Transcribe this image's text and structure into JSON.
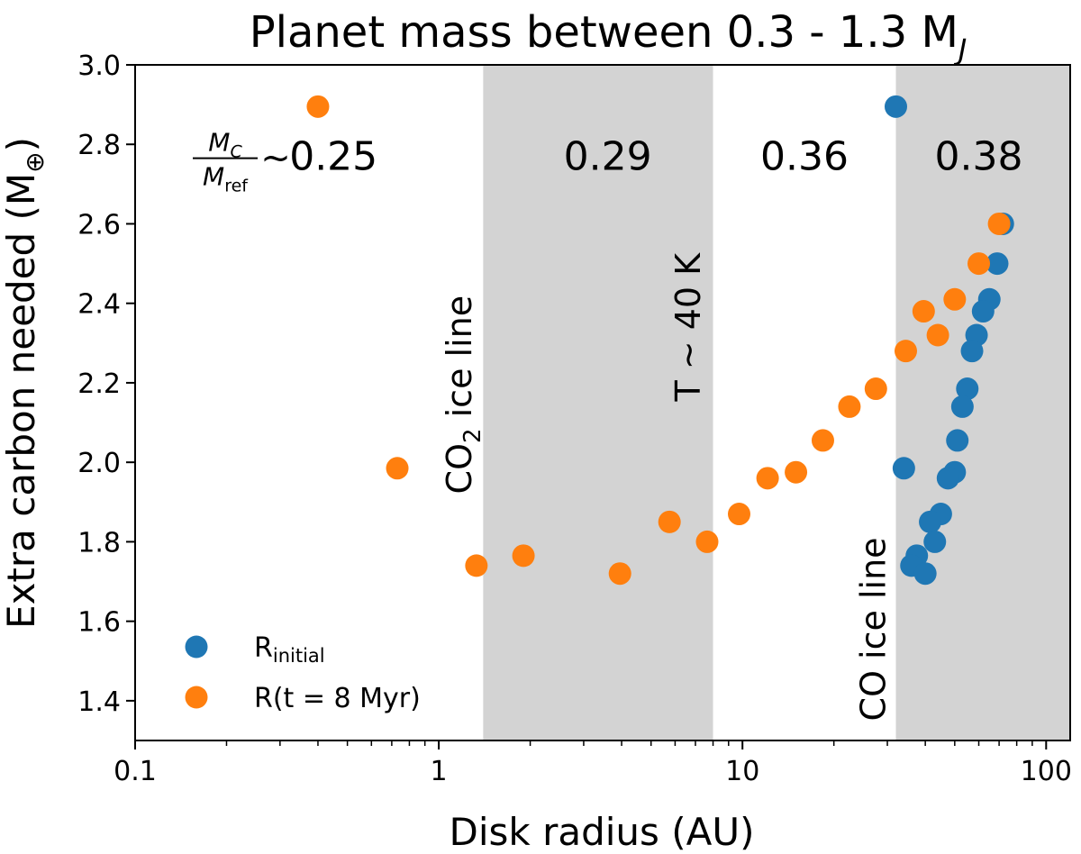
{
  "chart_data": {
    "type": "scatter",
    "title_main": "Planet mass between 0.3 - 1.3 M",
    "title_sub": "J",
    "xlabel": "Disk radius (AU)",
    "ylabel_main": "Extra carbon needed (M",
    "ylabel_symbol": "⊕",
    "ylabel_close": ")",
    "xscale": "log",
    "xlim": [
      0.1,
      120
    ],
    "ylim": [
      1.3,
      3.0
    ],
    "xticks": [
      0.1,
      1,
      10,
      100
    ],
    "xtick_labels": [
      "0.1",
      "1",
      "10",
      "100"
    ],
    "yticks": [
      1.4,
      1.6,
      1.8,
      2.0,
      2.2,
      2.4,
      2.6,
      2.8,
      3.0
    ],
    "ytick_labels": [
      "1.4",
      "1.6",
      "1.8",
      "2.0",
      "2.2",
      "2.4",
      "2.6",
      "2.8",
      "3.0"
    ],
    "shaded_regions": [
      {
        "x_start": 1.4,
        "x_end": 8.0,
        "color": "#d3d3d3"
      },
      {
        "x_start": 32,
        "x_end": 120,
        "color": "#d3d3d3"
      }
    ],
    "region_ratio_label": {
      "num": "M",
      "num_sub": "C",
      "den": "M",
      "den_sub": "ref",
      "sim": "~"
    },
    "region_values": [
      {
        "label": "0.25",
        "x": 0.45
      },
      {
        "label": "0.29",
        "x": 3.6
      },
      {
        "label": "0.36",
        "x": 16
      },
      {
        "label": "0.38",
        "x": 60
      }
    ],
    "region_values_y": 2.765,
    "line_labels": [
      {
        "pre": "CO",
        "sub": "2",
        "post": " ice line",
        "x": 1.28,
        "y": 2.17
      },
      {
        "pre": "T ∼ 40 K",
        "sub": "",
        "post": "",
        "x": 7.25,
        "y": 2.34
      },
      {
        "pre": "CO ice line",
        "sub": "",
        "post": "",
        "x": 29.5,
        "y": 1.58
      }
    ],
    "legend": {
      "position": "lower-left",
      "entries": [
        {
          "main": "R",
          "sub": "initial",
          "color": "#1f77b4"
        },
        {
          "main": "R(t = 8 Myr)",
          "sub": "",
          "color": "#ff7f0e"
        }
      ]
    },
    "series": [
      {
        "name": "R_initial",
        "color": "#1f77b4",
        "points": [
          [
            32.0,
            2.895
          ],
          [
            72.0,
            2.6
          ],
          [
            69.0,
            2.5
          ],
          [
            65.0,
            2.41
          ],
          [
            62.0,
            2.38
          ],
          [
            59.0,
            2.32
          ],
          [
            57.0,
            2.28
          ],
          [
            55.0,
            2.185
          ],
          [
            53.0,
            2.14
          ],
          [
            51.0,
            2.055
          ],
          [
            34.0,
            1.985
          ],
          [
            50.0,
            1.975
          ],
          [
            47.5,
            1.96
          ],
          [
            45.0,
            1.87
          ],
          [
            41.5,
            1.85
          ],
          [
            43.0,
            1.8
          ],
          [
            37.5,
            1.765
          ],
          [
            36.0,
            1.74
          ],
          [
            40.0,
            1.72
          ]
        ]
      },
      {
        "name": "R(t = 8 Myr)",
        "color": "#ff7f0e",
        "points": [
          [
            0.4,
            2.895
          ],
          [
            0.73,
            1.985
          ],
          [
            1.33,
            1.74
          ],
          [
            1.9,
            1.765
          ],
          [
            3.95,
            1.72
          ],
          [
            5.75,
            1.85
          ],
          [
            7.65,
            1.8
          ],
          [
            9.75,
            1.87
          ],
          [
            12.1,
            1.96
          ],
          [
            15.0,
            1.975
          ],
          [
            18.4,
            2.055
          ],
          [
            22.5,
            2.14
          ],
          [
            27.5,
            2.185
          ],
          [
            34.5,
            2.28
          ],
          [
            39.5,
            2.38
          ],
          [
            44.0,
            2.32
          ],
          [
            50.0,
            2.41
          ],
          [
            60.0,
            2.5
          ],
          [
            70.0,
            2.6
          ]
        ]
      }
    ]
  }
}
